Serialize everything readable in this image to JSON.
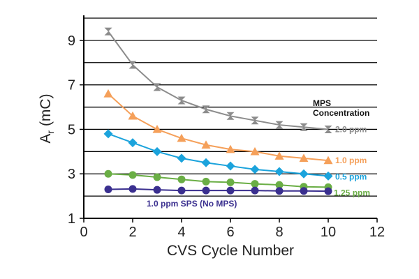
{
  "chart_data": {
    "type": "line",
    "xlabel": "CVS Cycle Number",
    "ylabel_main": "A",
    "ylabel_sub": "r",
    "ylabel_unit": " (mC)",
    "xlim": [
      0,
      12
    ],
    "ylim": [
      1,
      10
    ],
    "x_ticks": [
      0,
      2,
      4,
      6,
      8,
      10,
      12
    ],
    "y_ticks": [
      1,
      3,
      5,
      7,
      9
    ],
    "y_gridlines": [
      2,
      3,
      4,
      5,
      6,
      7,
      8,
      9,
      10
    ],
    "grid": "horizontal",
    "legend_title_lines": [
      "MPS",
      "Concentration"
    ],
    "x": [
      1,
      2,
      3,
      4,
      5,
      6,
      7,
      8,
      9,
      10
    ],
    "series": [
      {
        "label": "2.0 ppm",
        "marker": "hourglass",
        "color": "#8c8c8c",
        "values": [
          9.4,
          7.9,
          6.9,
          6.3,
          5.9,
          5.6,
          5.4,
          5.2,
          5.1,
          5.0
        ]
      },
      {
        "label": "1.0 ppm",
        "marker": "triangle",
        "color": "#f5a05a",
        "values": [
          6.6,
          5.6,
          5.0,
          4.6,
          4.3,
          4.1,
          4.0,
          3.8,
          3.7,
          3.6
        ]
      },
      {
        "label": "0.5 ppm",
        "marker": "diamond",
        "color": "#1ba3dc",
        "values": [
          4.8,
          4.4,
          4.0,
          3.7,
          3.5,
          3.35,
          3.2,
          3.1,
          3.0,
          2.9
        ]
      },
      {
        "label": "1.25 ppm",
        "marker": "circle",
        "color": "#6aae45",
        "values": [
          3.0,
          2.95,
          2.85,
          2.75,
          2.65,
          2.62,
          2.55,
          2.5,
          2.42,
          2.4
        ]
      },
      {
        "label": "1.0 ppm SPS (No MPS)",
        "marker": "circle",
        "color": "#3a2f8f",
        "values": [
          2.3,
          2.32,
          2.28,
          2.25,
          2.25,
          2.25,
          2.25,
          2.23,
          2.23,
          2.22
        ]
      }
    ]
  }
}
